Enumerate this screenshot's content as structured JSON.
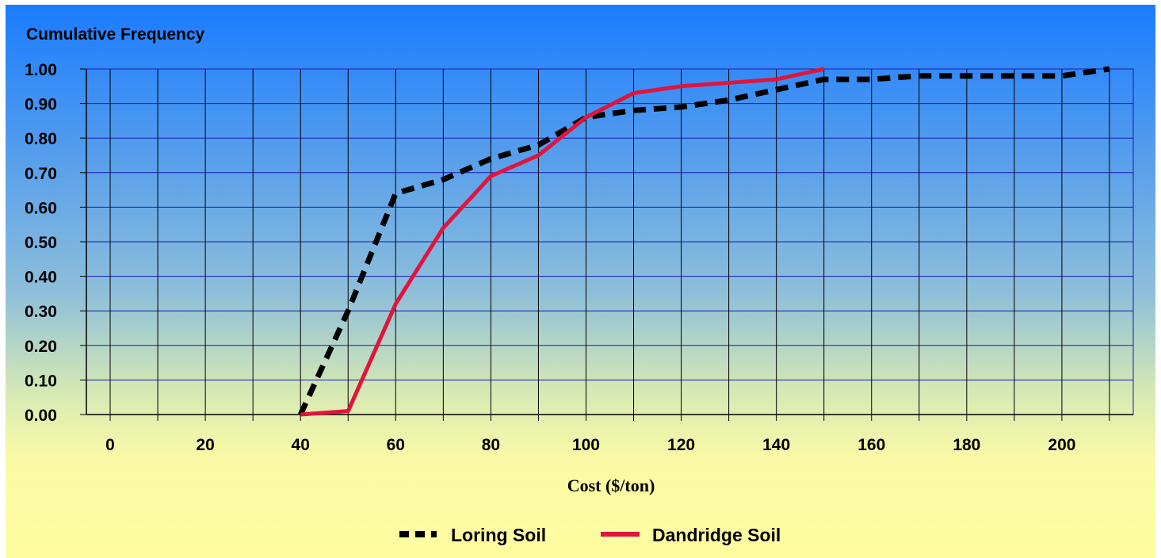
{
  "chart_data": {
    "type": "line",
    "title": "",
    "ylabel": "Cumulative Frequency",
    "xlabel": "Cost ($/ton)",
    "xlim": [
      -5,
      215
    ],
    "ylim": [
      0,
      1
    ],
    "x_ticks": [
      0,
      20,
      40,
      60,
      80,
      100,
      120,
      140,
      160,
      180,
      200
    ],
    "y_ticks": [
      "0.00",
      "0.10",
      "0.20",
      "0.30",
      "0.40",
      "0.50",
      "0.60",
      "0.70",
      "0.80",
      "0.90",
      "1.00"
    ],
    "grid": true,
    "legend_position": "bottom",
    "series": [
      {
        "name": "Loring Soil",
        "color": "#000000",
        "style": "dashed",
        "x": [
          40,
          50,
          60,
          70,
          80,
          90,
          100,
          110,
          120,
          130,
          140,
          150,
          160,
          170,
          180,
          190,
          200,
          210
        ],
        "y": [
          0.0,
          0.3,
          0.64,
          0.68,
          0.74,
          0.78,
          0.86,
          0.88,
          0.89,
          0.91,
          0.94,
          0.97,
          0.97,
          0.98,
          0.98,
          0.98,
          0.98,
          1.0
        ]
      },
      {
        "name": "Dandridge Soil",
        "color": "#e0143c",
        "style": "solid",
        "x": [
          40,
          50,
          60,
          70,
          80,
          90,
          100,
          110,
          120,
          130,
          140,
          150
        ],
        "y": [
          0.0,
          0.01,
          0.32,
          0.54,
          0.69,
          0.75,
          0.86,
          0.93,
          0.95,
          0.96,
          0.97,
          1.0
        ]
      }
    ]
  }
}
